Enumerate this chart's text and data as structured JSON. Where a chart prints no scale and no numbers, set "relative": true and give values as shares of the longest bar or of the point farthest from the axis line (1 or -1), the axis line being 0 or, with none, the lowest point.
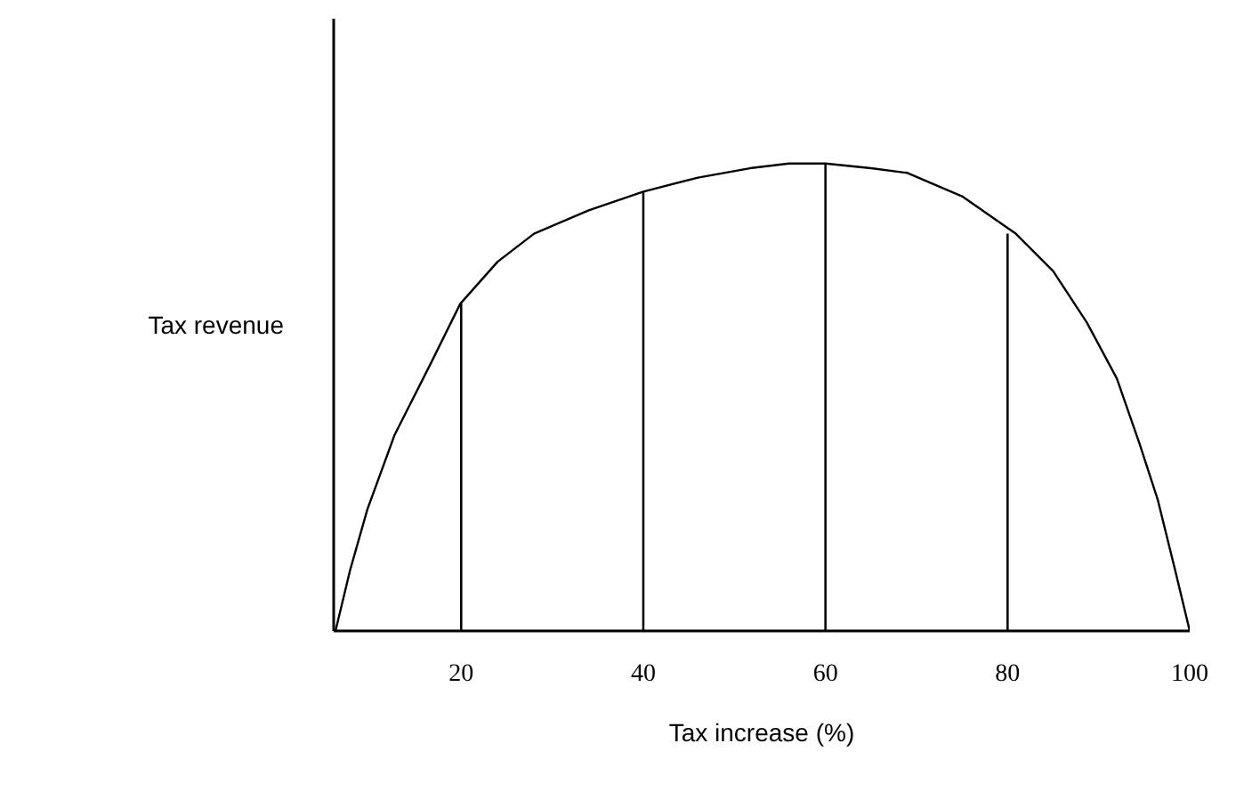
{
  "chart_data": {
    "type": "line",
    "xlabel": "Tax increase (%)",
    "ylabel": "Tax revenue",
    "relative": true,
    "xlim": [
      6,
      100
    ],
    "xticks": [
      20,
      40,
      60,
      80,
      100
    ],
    "grid": false,
    "marker": "none",
    "line_style": "solid",
    "series": [
      {
        "color": "#000000",
        "x": [
          6.2,
          7.8,
          9.7,
          12.7,
          16.6,
          19.9,
          24,
          28,
          34,
          40,
          46,
          51.7,
          56,
          60,
          65,
          69,
          75,
          80.9,
          85,
          88.7,
          92,
          94.5,
          96.5,
          98.4,
          100
        ],
        "values": [
          0,
          0.13,
          0.26,
          0.42,
          0.57,
          0.7,
          0.79,
          0.85,
          0.9,
          0.94,
          0.97,
          0.99,
          1.0,
          1.0,
          0.99,
          0.98,
          0.93,
          0.85,
          0.77,
          0.66,
          0.54,
          0.4,
          0.28,
          0.13,
          0
        ]
      },
      {
        "type": "bar",
        "color": "#000000",
        "x": [
          20,
          40,
          60,
          80
        ],
        "values": [
          0.7,
          0.94,
          1.0,
          0.85
        ]
      }
    ]
  }
}
